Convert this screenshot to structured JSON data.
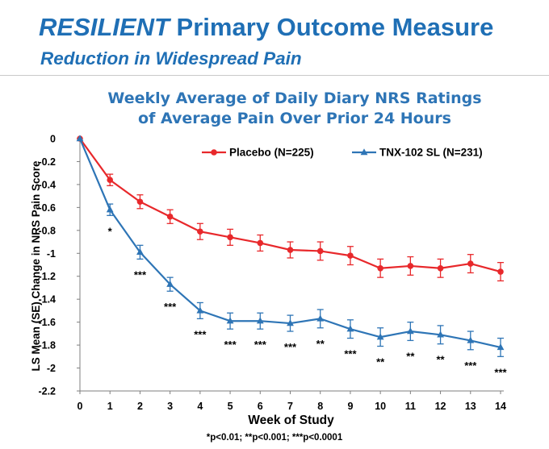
{
  "slide": {
    "title_emphasis": "RESILIENT",
    "title_rest": "Primary Outcome Measure",
    "subtitle": "Reduction in Widespread Pain",
    "footnote": "*p<0.01; **p<0.001; ***p<0.0001"
  },
  "chart_data": {
    "type": "line",
    "title_line1": "Weekly Average of Daily Diary NRS Ratings",
    "title_line2": "of Average Pain Over Prior 24 Hours",
    "xlabel": "Week of Study",
    "ylabel": "LS Mean (SE) Change in NRS Pain Score",
    "x": [
      0,
      1,
      2,
      3,
      4,
      5,
      6,
      7,
      8,
      9,
      10,
      11,
      12,
      13,
      14
    ],
    "xlim": [
      0,
      14
    ],
    "ylim": [
      -2.2,
      0
    ],
    "yticks": [
      0,
      -0.2,
      -0.4,
      -0.6,
      -0.8,
      -1,
      -1.2,
      -1.4,
      -1.6,
      -1.8,
      -2,
      -2.2
    ],
    "ytick_labels": [
      "0",
      "-0.2",
      "-0.4",
      "-0.6",
      "-0.8",
      "-1",
      "-1.2",
      "-1.4",
      "-1.6",
      "-1.8",
      "-2",
      "-2.2"
    ],
    "grid": "none",
    "legend_position": "top",
    "series": [
      {
        "name": "Placebo (N=225)",
        "color": "#e8282b",
        "marker": "circle",
        "values": [
          0,
          -0.36,
          -0.55,
          -0.68,
          -0.81,
          -0.86,
          -0.91,
          -0.97,
          -0.98,
          -1.02,
          -1.13,
          -1.11,
          -1.13,
          -1.09,
          -1.16
        ],
        "errors": [
          0,
          0.05,
          0.06,
          0.06,
          0.07,
          0.07,
          0.07,
          0.07,
          0.08,
          0.08,
          0.08,
          0.08,
          0.08,
          0.08,
          0.08
        ]
      },
      {
        "name": "TNX-102 SL (N=231)",
        "color": "#2e75b6",
        "marker": "triangle",
        "values": [
          0,
          -0.62,
          -0.99,
          -1.27,
          -1.5,
          -1.59,
          -1.59,
          -1.61,
          -1.57,
          -1.66,
          -1.73,
          -1.68,
          -1.71,
          -1.76,
          -1.82
        ],
        "errors": [
          0,
          0.05,
          0.06,
          0.06,
          0.07,
          0.07,
          0.07,
          0.07,
          0.08,
          0.08,
          0.08,
          0.08,
          0.08,
          0.08,
          0.08
        ]
      }
    ],
    "significance": [
      "",
      "*",
      "***",
      "***",
      "***",
      "***",
      "***",
      "***",
      "**",
      "***",
      "**",
      "**",
      "**",
      "***",
      "***"
    ]
  }
}
